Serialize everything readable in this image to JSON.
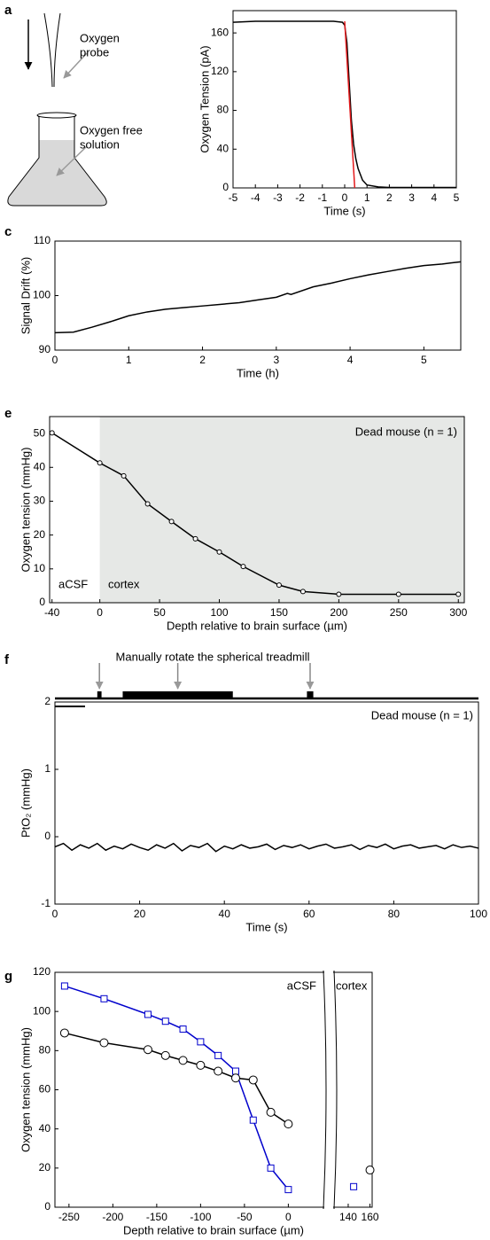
{
  "chart_data": [
    {
      "type": "diagram",
      "label": "a",
      "labels": [
        [
          "Oxygen",
          "probe"
        ],
        [
          "Oxygen free",
          "solution"
        ]
      ]
    },
    {
      "type": "line",
      "x_label": "Time (s)",
      "y_label": "Oxygen Tension (pA)",
      "xlim": [
        -5,
        5
      ],
      "ylim": [
        0,
        183
      ],
      "xticks": [
        -5,
        -4,
        -3,
        -2,
        -1,
        0,
        1,
        2,
        3,
        4,
        5
      ],
      "yticks": [
        0,
        40,
        80,
        120,
        160
      ],
      "series": [
        {
          "color": "#000000",
          "x": [
            -5,
            -4,
            -2,
            -0.5,
            -0.1,
            0,
            0.1,
            0.2,
            0.3,
            0.4,
            0.5,
            0.6,
            0.8,
            1,
            1.5,
            2,
            3,
            5
          ],
          "values": [
            171,
            172,
            172,
            172,
            171,
            168,
            150,
            110,
            70,
            45,
            30,
            20,
            8,
            3,
            1,
            0.5,
            0.5,
            0.5
          ]
        },
        {
          "color": "#e41a1c",
          "x": [
            0,
            0.45
          ],
          "values": [
            172,
            0
          ]
        }
      ]
    },
    {
      "type": "line",
      "label": "c",
      "x_label": "Time (h)",
      "y_label": "Signal Drift (%)",
      "xlim": [
        0,
        5.5
      ],
      "ylim": [
        90,
        110
      ],
      "xticks": [
        0,
        1,
        2,
        3,
        4,
        5
      ],
      "yticks": [
        90,
        100,
        110
      ],
      "series": [
        {
          "color": "#000000",
          "x": [
            0,
            0.25,
            0.5,
            0.75,
            1,
            1.25,
            1.5,
            1.75,
            2,
            2.25,
            2.5,
            2.75,
            3,
            3.15,
            3.2,
            3.5,
            3.75,
            4,
            4.25,
            4.5,
            4.75,
            5,
            5.25,
            5.5
          ],
          "values": [
            93.2,
            93.3,
            94.2,
            95.2,
            96.3,
            97,
            97.5,
            97.8,
            98.1,
            98.4,
            98.7,
            99.2,
            99.7,
            100.4,
            100.2,
            101.6,
            102.3,
            103.1,
            103.8,
            104.4,
            105,
            105.5,
            105.8,
            106.2
          ]
        }
      ]
    },
    {
      "type": "line",
      "label": "e",
      "x_label": "Depth relative to brain surface (µm)",
      "y_label": "Oxygen tension (mmHg)",
      "xlim": [
        -42,
        305
      ],
      "ylim": [
        0,
        55
      ],
      "xticks": [
        -40,
        0,
        50,
        100,
        150,
        200,
        250,
        300
      ],
      "yticks": [
        0,
        10,
        20,
        30,
        40,
        50
      ],
      "shade": [
        0,
        305
      ],
      "annotations": [
        "Dead mouse (n = 1)",
        "aCSF",
        "cortex"
      ],
      "markers": "circle",
      "series": [
        {
          "color": "#000000",
          "x": [
            -40,
            0,
            20,
            40,
            60,
            80,
            100,
            120,
            150,
            170,
            200,
            250,
            300
          ],
          "values": [
            50.2,
            41.3,
            37.5,
            29.2,
            24,
            18.9,
            15,
            10.7,
            5.2,
            3.3,
            2.5,
            2.5,
            2.5
          ]
        }
      ]
    },
    {
      "type": "line",
      "label": "f",
      "title": "Manually rotate the spherical treadmill",
      "x_label": "Time (s)",
      "y_label": "PtO₂ (mmHg)",
      "xlim": [
        0,
        100
      ],
      "ylim": [
        -1,
        2
      ],
      "xticks": [
        0,
        20,
        40,
        60,
        80,
        100
      ],
      "yticks": [
        -1,
        0,
        1,
        2
      ],
      "annotations": [
        "Dead mouse (n = 1)"
      ],
      "events": {
        "starts": [
          10,
          16,
          59.5
        ],
        "ends": [
          11,
          42,
          61
        ]
      },
      "series": [
        {
          "color": "#000000",
          "x": [
            0,
            2,
            4,
            6,
            8,
            10,
            12,
            14,
            16,
            18,
            20,
            22,
            24,
            26,
            28,
            30,
            32,
            34,
            36,
            38,
            40,
            42,
            44,
            46,
            48,
            50,
            52,
            54,
            56,
            58,
            60,
            62,
            64,
            66,
            68,
            70,
            72,
            74,
            76,
            78,
            80,
            82,
            84,
            86,
            88,
            90,
            92,
            94,
            96,
            98,
            100
          ],
          "values": [
            -0.15,
            -0.1,
            -0.2,
            -0.12,
            -0.17,
            -0.1,
            -0.2,
            -0.14,
            -0.18,
            -0.11,
            -0.16,
            -0.2,
            -0.12,
            -0.17,
            -0.1,
            -0.21,
            -0.13,
            -0.16,
            -0.1,
            -0.22,
            -0.14,
            -0.18,
            -0.12,
            -0.17,
            -0.15,
            -0.11,
            -0.19,
            -0.13,
            -0.16,
            -0.12,
            -0.18,
            -0.14,
            -0.11,
            -0.17,
            -0.15,
            -0.12,
            -0.19,
            -0.13,
            -0.16,
            -0.11,
            -0.18,
            -0.14,
            -0.12,
            -0.17,
            -0.15,
            -0.13,
            -0.18,
            -0.12,
            -0.16,
            -0.14,
            -0.17
          ]
        }
      ]
    },
    {
      "type": "line",
      "label": "g",
      "x_label": "Depth relative to brain surface (µm)",
      "y_label": "Oxygen tension (mmHg)",
      "xlim": [
        -266,
        162
      ],
      "xbreak": [
        40,
        127
      ],
      "ylim": [
        0,
        120
      ],
      "xticks": [
        -250,
        -200,
        -150,
        -100,
        -50,
        0,
        140,
        160
      ],
      "yticks": [
        0,
        20,
        40,
        60,
        80,
        100,
        120
      ],
      "annotations": [
        "aCSF",
        "cortex"
      ],
      "series": [
        {
          "color": "#0000cc",
          "marker": "square",
          "x": [
            -255,
            -210,
            -160,
            -140,
            -120,
            -100,
            -80,
            -60,
            -40,
            -20,
            0,
            145
          ],
          "values": [
            113,
            106.5,
            98.5,
            95,
            91,
            84.5,
            77.5,
            69.5,
            44.5,
            20,
            9,
            10.5
          ]
        },
        {
          "color": "#000000",
          "marker": "circle",
          "x": [
            -255,
            -210,
            -160,
            -140,
            -120,
            -100,
            -80,
            -60,
            -40,
            -20,
            0,
            160
          ],
          "values": [
            89,
            84,
            80.5,
            77.5,
            75,
            72.5,
            69.5,
            66,
            65,
            48.5,
            42.5,
            19
          ]
        }
      ]
    }
  ]
}
